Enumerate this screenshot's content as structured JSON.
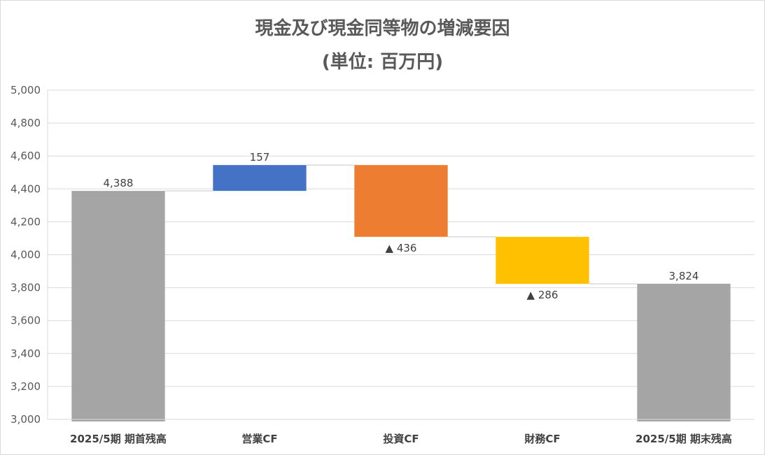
{
  "chart_data": {
    "type": "bar",
    "subtype": "waterfall",
    "title": "現金及び現金同等物の増減要因",
    "subtitle": "(単位: 百万円)",
    "categories": [
      "2025/5期 期首残高",
      "営業CF",
      "投資CF",
      "財務CF",
      "2025/5期 期末残高"
    ],
    "values": [
      4388,
      157,
      -436,
      -286,
      3824
    ],
    "kinds": [
      "total",
      "delta",
      "delta",
      "delta",
      "total"
    ],
    "data_labels": [
      "4,388",
      "157",
      "▲ 436",
      "▲ 286",
      "3,824"
    ],
    "colors": [
      "#a5a5a5",
      "#4472c4",
      "#ed7d31",
      "#ffc000",
      "#a5a5a5"
    ],
    "ylim": [
      3000,
      5000
    ],
    "yticks": [
      3000,
      3200,
      3400,
      3600,
      3800,
      4000,
      4200,
      4400,
      4600,
      4800,
      5000
    ],
    "ytick_labels": [
      "3,000",
      "3,200",
      "3,400",
      "3,600",
      "3,800",
      "4,000",
      "4,200",
      "4,400",
      "4,600",
      "4,800",
      "5,000"
    ],
    "grid": true,
    "legend": "none",
    "connector_color": "#d9d9d9",
    "grid_color": "#d9d9d9"
  }
}
